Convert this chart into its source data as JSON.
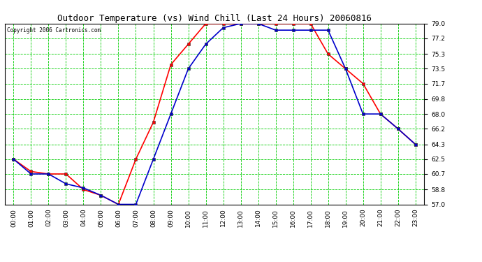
{
  "title": "Outdoor Temperature (vs) Wind Chill (Last 24 Hours) 20060816",
  "copyright": "Copyright 2006 Cartronics.com",
  "hours": [
    "00:00",
    "01:00",
    "02:00",
    "03:00",
    "04:00",
    "05:00",
    "06:00",
    "07:00",
    "08:00",
    "09:00",
    "10:00",
    "11:00",
    "12:00",
    "13:00",
    "14:00",
    "15:00",
    "16:00",
    "17:00",
    "18:00",
    "19:00",
    "20:00",
    "21:00",
    "22:00",
    "23:00"
  ],
  "temp": [
    62.5,
    61.0,
    60.7,
    60.7,
    58.8,
    58.1,
    57.0,
    62.5,
    67.0,
    74.0,
    76.5,
    79.0,
    79.0,
    79.0,
    79.0,
    79.0,
    79.0,
    79.0,
    75.3,
    73.5,
    71.7,
    68.0,
    66.2,
    64.3
  ],
  "windchill": [
    62.5,
    60.7,
    60.7,
    59.5,
    59.0,
    58.1,
    57.0,
    57.0,
    62.5,
    68.0,
    73.5,
    76.5,
    78.5,
    79.0,
    79.0,
    78.2,
    78.2,
    78.2,
    78.2,
    73.5,
    68.0,
    68.0,
    66.2,
    64.3
  ],
  "temp_color": "#ff0000",
  "windchill_color": "#0000cc",
  "grid_color": "#00cc00",
  "bg_color": "#ffffff",
  "ylim": [
    57.0,
    79.0
  ],
  "yticks": [
    57.0,
    58.8,
    60.7,
    62.5,
    64.3,
    66.2,
    68.0,
    69.8,
    71.7,
    73.5,
    75.3,
    77.2,
    79.0
  ],
  "marker": "s",
  "marker_size": 2.5,
  "linewidth": 1.2,
  "fig_width": 6.9,
  "fig_height": 3.75,
  "title_fontsize": 9,
  "tick_fontsize": 6.5,
  "copyright_fontsize": 5.5
}
